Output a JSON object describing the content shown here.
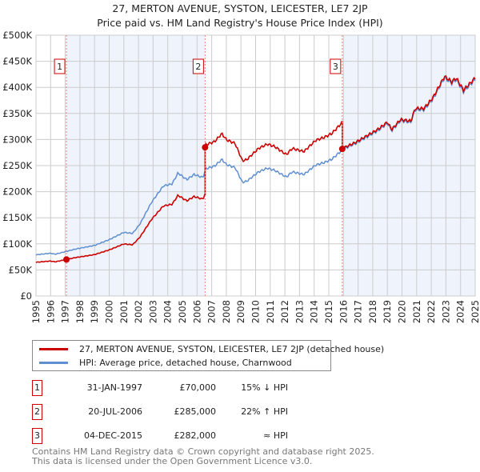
{
  "title_line1": "27, MERTON AVENUE, SYSTON, LEICESTER, LE7 2JP",
  "title_line2": "Price paid vs. HM Land Registry's House Price Index (HPI)",
  "colors": {
    "price": "#cc0000",
    "hpi": "#5f8fd0",
    "shade": "#eef3fc",
    "grid": "#cccccc"
  },
  "chart_data": {
    "type": "line",
    "xlim": [
      1995,
      2025
    ],
    "ylim": [
      0,
      500000
    ],
    "x_ticks": [
      "1995",
      "1996",
      "1997",
      "1998",
      "1999",
      "2000",
      "2001",
      "2002",
      "2003",
      "2004",
      "2005",
      "2006",
      "2007",
      "2008",
      "2009",
      "2010",
      "2011",
      "2012",
      "2013",
      "2014",
      "2015",
      "2016",
      "2017",
      "2018",
      "2019",
      "2020",
      "2021",
      "2022",
      "2023",
      "2024",
      "2025"
    ],
    "y_ticks": [
      {
        "v": 0,
        "label": "£0"
      },
      {
        "v": 50000,
        "label": "£50K"
      },
      {
        "v": 100000,
        "label": "£100K"
      },
      {
        "v": 150000,
        "label": "£150K"
      },
      {
        "v": 200000,
        "label": "£200K"
      },
      {
        "v": 250000,
        "label": "£250K"
      },
      {
        "v": 300000,
        "label": "£300K"
      },
      {
        "v": 350000,
        "label": "£350K"
      },
      {
        "v": 400000,
        "label": "£400K"
      },
      {
        "v": 450000,
        "label": "£450K"
      },
      {
        "v": 500000,
        "label": "£500K"
      }
    ],
    "grid": true,
    "hpi_series": {
      "name": "HPI: Average price, detached house, Charnwood",
      "x": [
        1995,
        1996,
        1996.3,
        1997,
        1997.7,
        1999,
        2000,
        2001,
        2001.6,
        2002.1,
        2002.9,
        2003.7,
        2004.3,
        2004.7,
        2005.3,
        2005.8,
        2006.4,
        2006.6,
        2007.2,
        2007.7,
        2008,
        2008.6,
        2009.1,
        2009.4,
        2010.2,
        2010.8,
        2011.3,
        2012.1,
        2012.5,
        2013.3,
        2014.1,
        2014.7,
        2015.2,
        2016,
        2016.8,
        2017.6,
        2018.4,
        2019,
        2019.3,
        2019.9,
        2020.6,
        2020.9,
        2021.5,
        2022.1,
        2022.9,
        2023.4,
        2023.7,
        2024.2,
        2025
      ],
      "y": [
        79000,
        82000,
        80000,
        85000,
        90000,
        97000,
        108000,
        122000,
        120000,
        138000,
        180000,
        211000,
        215000,
        236000,
        223000,
        233000,
        227000,
        244000,
        249000,
        262000,
        252000,
        246000,
        218000,
        220000,
        238000,
        245000,
        241000,
        228000,
        238000,
        233000,
        251000,
        256000,
        262000,
        282000,
        292000,
        305000,
        318000,
        331000,
        317000,
        336000,
        333000,
        357000,
        357000,
        377000,
        418000,
        408000,
        415000,
        392000,
        415000
      ]
    },
    "price_series": {
      "name": "27, MERTON AVENUE, SYSTON, LEICESTER, LE7 2JP (detached house)",
      "method": "HPI-indexed from each sale"
    },
    "sales": [
      {
        "n": "1",
        "x": 1997.08,
        "price": 70000
      },
      {
        "n": "2",
        "x": 2006.55,
        "price": 285000
      },
      {
        "n": "3",
        "x": 2015.92,
        "price": 282000
      }
    ]
  },
  "legend": {
    "price": "27, MERTON AVENUE, SYSTON, LEICESTER, LE7 2JP (detached house)",
    "hpi": "HPI: Average price, detached house, Charnwood"
  },
  "transactions": [
    {
      "n": "1",
      "date": "31-JAN-1997",
      "price": "£70,000",
      "hpi": "15% ↓ HPI"
    },
    {
      "n": "2",
      "date": "20-JUL-2006",
      "price": "£285,000",
      "hpi": "22% ↑ HPI"
    },
    {
      "n": "3",
      "date": "04-DEC-2015",
      "price": "£282,000",
      "hpi": "≈ HPI"
    }
  ],
  "footer_line1": "Contains HM Land Registry data © Crown copyright and database right 2025.",
  "footer_line2": "This data is licensed under the Open Government Licence v3.0."
}
